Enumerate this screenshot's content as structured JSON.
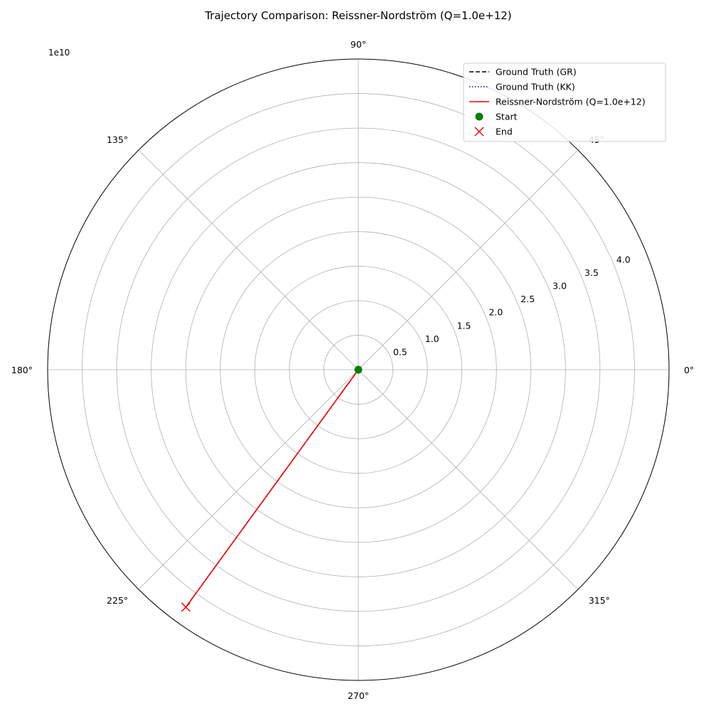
{
  "chart_data": {
    "type": "line",
    "projection": "polar",
    "title": "Trajectory Comparison: Reissner-Nordström (Q=1.0e+12)",
    "r_offset_label": "1e10",
    "r_ticks": [
      "0.5",
      "1.0",
      "1.5",
      "2.0",
      "2.5",
      "3.0",
      "3.5",
      "4.0"
    ],
    "r_tick_values": [
      0.5,
      1.0,
      1.5,
      2.0,
      2.5,
      3.0,
      3.5,
      4.0
    ],
    "rlim": [
      0,
      4.5
    ],
    "theta_ticks": [
      "0°",
      "45°",
      "90°",
      "135°",
      "180°",
      "225°",
      "270°",
      "315°"
    ],
    "theta_tick_values": [
      0,
      45,
      90,
      135,
      180,
      225,
      270,
      315
    ],
    "grid": true,
    "legend_position": "top-right",
    "series": [
      {
        "name": "Ground Truth (GR)",
        "style": "dashed",
        "color": "#000000",
        "theta": [
          234,
          234
        ],
        "r": [
          0.0,
          4.25
        ]
      },
      {
        "name": "Ground Truth (KK)",
        "style": "dotted",
        "color": "#0000cc",
        "theta": [
          234,
          234
        ],
        "r": [
          0.0,
          4.25
        ]
      },
      {
        "name": "Reissner-Nordström (Q=1.0e+12)",
        "style": "solid",
        "color": "#ff0000",
        "theta": [
          234,
          234
        ],
        "r": [
          0.0,
          4.25
        ]
      }
    ],
    "markers": [
      {
        "name": "Start",
        "shape": "circle",
        "color": "#008000",
        "theta": 0,
        "r": 0.0
      },
      {
        "name": "End",
        "shape": "x",
        "color": "#ff0000",
        "theta": 234,
        "r": 4.25
      }
    ]
  }
}
